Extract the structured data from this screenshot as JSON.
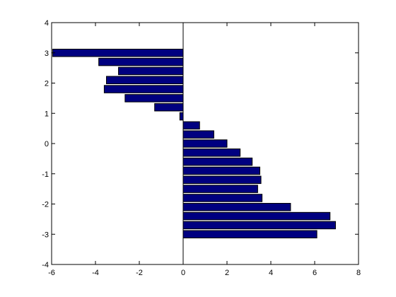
{
  "chart_data": {
    "type": "bar",
    "orientation": "horizontal",
    "title": "",
    "xlabel": "",
    "ylabel": "",
    "xlim": [
      -6,
      8
    ],
    "ylim": [
      -4,
      4
    ],
    "x_ticks": [
      "-6",
      "-4",
      "-2",
      "0",
      "2",
      "4",
      "6",
      "8"
    ],
    "y_ticks": [
      "4",
      "3",
      "2",
      "1",
      "0",
      "-1",
      "-2",
      "-3",
      "-4"
    ],
    "bar_color": "#000080",
    "bar_edge_color": "#000000",
    "grid": false,
    "legend": "none",
    "points": [
      {
        "y": 3.0,
        "value": -5.95
      },
      {
        "y": 2.7,
        "value": -3.85
      },
      {
        "y": 2.4,
        "value": -2.95
      },
      {
        "y": 2.1,
        "value": -3.5
      },
      {
        "y": 1.8,
        "value": -3.6
      },
      {
        "y": 1.5,
        "value": -2.65
      },
      {
        "y": 1.2,
        "value": -1.3
      },
      {
        "y": 0.9,
        "value": -0.15
      },
      {
        "y": 0.6,
        "value": 0.75
      },
      {
        "y": 0.3,
        "value": 1.4
      },
      {
        "y": 0.0,
        "value": 2.0
      },
      {
        "y": -0.3,
        "value": 2.6
      },
      {
        "y": -0.6,
        "value": 3.15
      },
      {
        "y": -0.9,
        "value": 3.5
      },
      {
        "y": -1.2,
        "value": 3.55
      },
      {
        "y": -1.5,
        "value": 3.4
      },
      {
        "y": -1.8,
        "value": 3.6
      },
      {
        "y": -2.1,
        "value": 4.9
      },
      {
        "y": -2.4,
        "value": 6.7
      },
      {
        "y": -2.7,
        "value": 6.95
      },
      {
        "y": -3.0,
        "value": 6.1
      }
    ]
  }
}
